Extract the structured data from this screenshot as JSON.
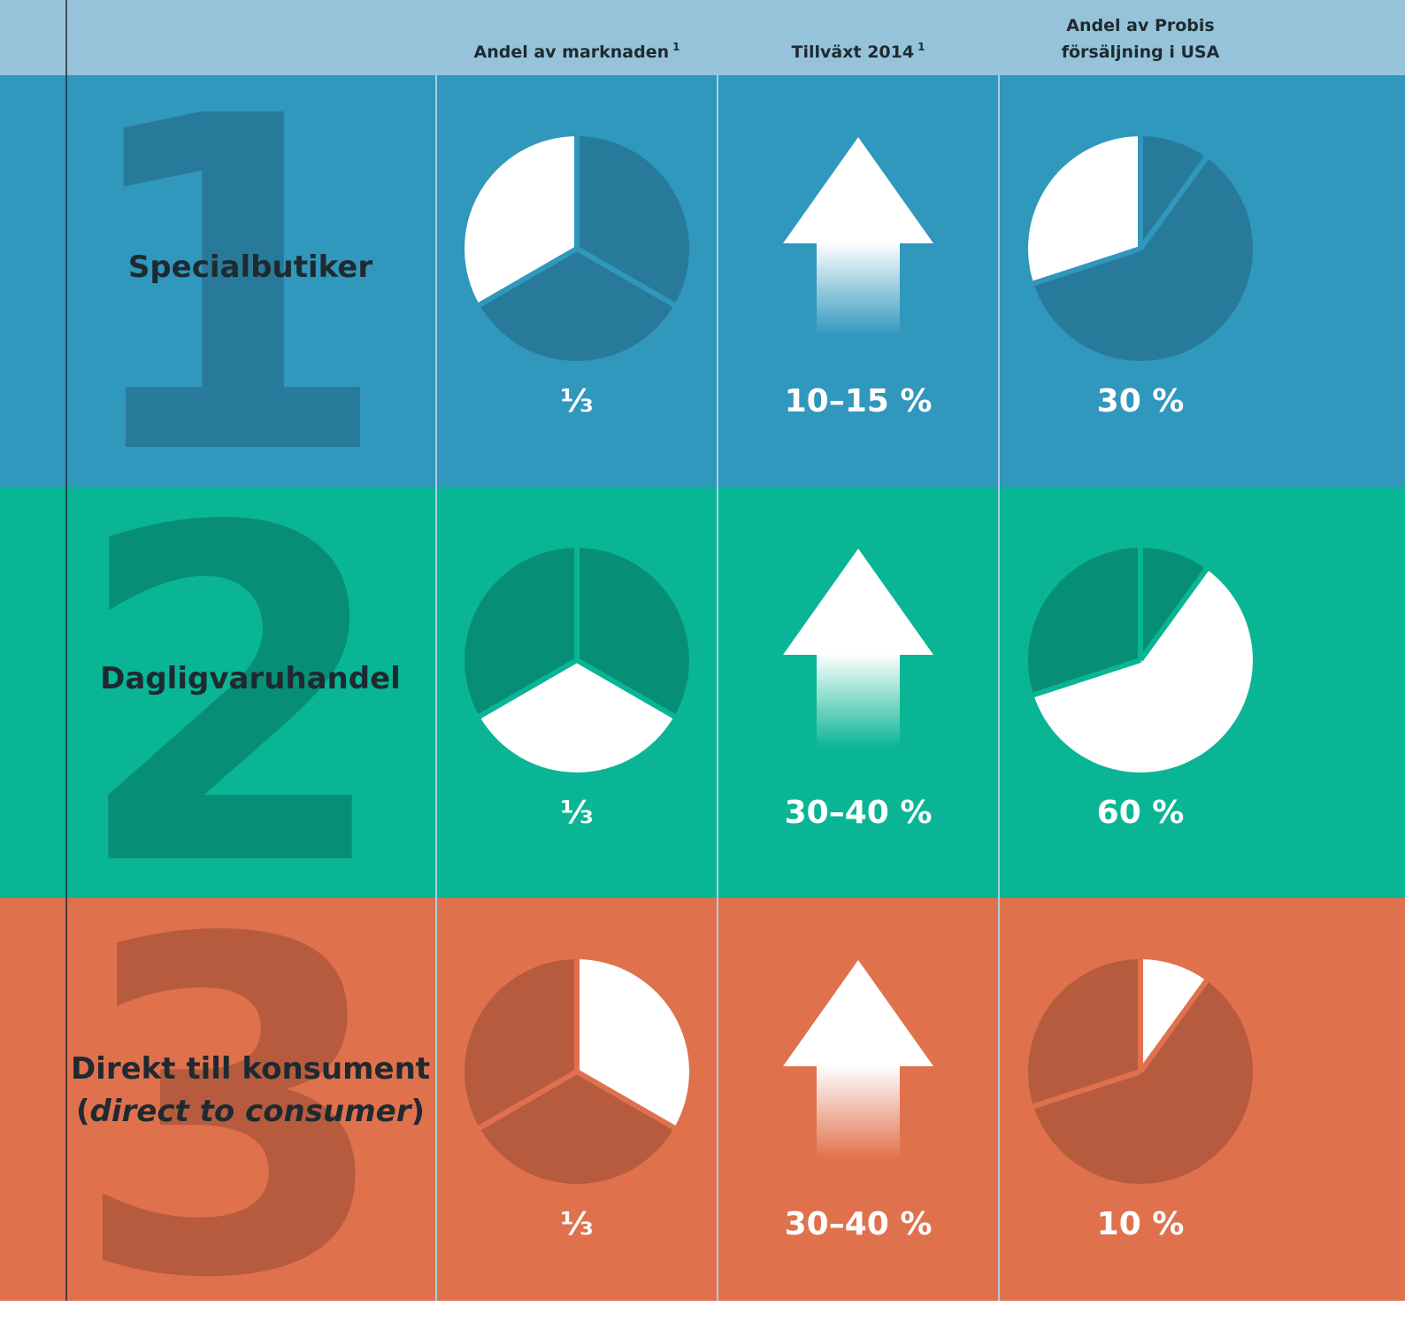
{
  "header": {
    "columns": [
      {
        "text": "Andel av marknaden",
        "note": "1"
      },
      {
        "text": "Tillväxt 2014",
        "note": "1"
      },
      {
        "lines": [
          "Andel av Probis",
          "försäljning i USA"
        ]
      }
    ]
  },
  "rows": [
    {
      "number": "1",
      "label_lines": [
        [
          "Specialbutiker"
        ]
      ],
      "market_share": {
        "value": 33.3,
        "label": "⅓"
      },
      "growth": "10–15 %",
      "probis_share": {
        "value": 30,
        "label": "30 %"
      }
    },
    {
      "number": "2",
      "label_lines": [
        [
          "Dagligvaruhandel"
        ]
      ],
      "market_share": {
        "value": 33.3,
        "label": "⅓"
      },
      "growth": "30–40 %",
      "probis_share": {
        "value": 60,
        "label": "60 %"
      }
    },
    {
      "number": "3",
      "label_lines": [
        [
          "Direkt till konsument"
        ],
        [
          "(",
          "direct to consumer",
          ")"
        ]
      ],
      "market_share": {
        "value": 33.3,
        "label": "⅓"
      },
      "growth": "30–40 %",
      "probis_share": {
        "value": 10,
        "label": "10 %"
      }
    }
  ]
}
